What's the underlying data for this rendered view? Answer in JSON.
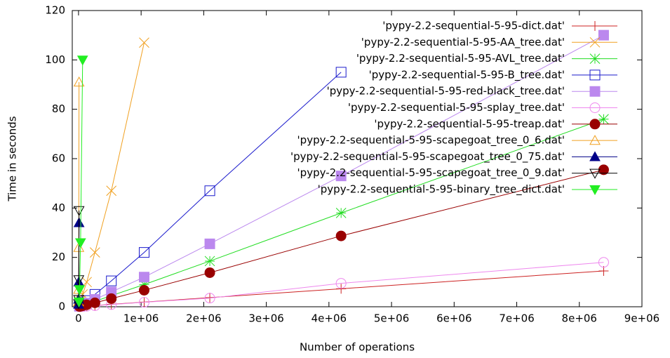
{
  "chart_data": {
    "type": "line",
    "xlabel": "Number of operations",
    "ylabel": "Time in seconds",
    "xlim": [
      -100000,
      9000000
    ],
    "ylim": [
      0,
      120
    ],
    "xticks": [
      0,
      {
        "value": 1000000,
        "label": "1e+06"
      },
      {
        "value": 2000000,
        "label": "2e+06"
      },
      {
        "value": 3000000,
        "label": "3e+06"
      },
      {
        "value": 4000000,
        "label": "4e+06"
      },
      {
        "value": 5000000,
        "label": "5e+06"
      },
      {
        "value": 6000000,
        "label": "6e+06"
      },
      {
        "value": 7000000,
        "label": "7e+06"
      },
      {
        "value": 8000000,
        "label": "8e+06"
      },
      {
        "value": 9000000,
        "label": "9e+06"
      }
    ],
    "yticks": [
      0,
      20,
      40,
      60,
      80,
      100,
      120
    ],
    "legend": "upper-right",
    "series": [
      {
        "name": "'pypy-2.2-sequential-5-95-dict.dat'",
        "color": "#cc2222",
        "marker": "plus",
        "x": [
          16384,
          32768,
          65536,
          131072,
          262144,
          524288,
          1048576,
          2097152,
          4194304,
          8388608
        ],
        "values": [
          0.03,
          0.06,
          0.12,
          0.23,
          0.5,
          1.0,
          1.9,
          3.7,
          7.3,
          14.5
        ]
      },
      {
        "name": "'pypy-2.2-sequential-5-95-AA_tree.dat'",
        "color": "#f0a020",
        "marker": "cross",
        "x": [
          16384,
          32768,
          65536,
          131072,
          262144,
          524288,
          1048576
        ],
        "values": [
          1.2,
          2.5,
          5,
          10,
          22,
          47,
          107
        ]
      },
      {
        "name": "'pypy-2.2-sequential-5-95-AVL_tree.dat'",
        "color": "#22dd22",
        "marker": "star",
        "x": [
          16384,
          32768,
          65536,
          131072,
          262144,
          524288,
          1048576,
          2097152,
          4194304,
          8388608
        ],
        "values": [
          0.14,
          0.28,
          0.55,
          1.1,
          2.2,
          4.5,
          9,
          18.5,
          38,
          76
        ]
      },
      {
        "name": "'pypy-2.2-sequential-5-95-B_tree.dat'",
        "color": "#1a1acc",
        "marker": "square-open",
        "x": [
          16384,
          32768,
          65536,
          131072,
          262144,
          524288,
          1048576,
          2097152,
          4194304
        ],
        "values": [
          0.3,
          0.6,
          1.2,
          2.5,
          5,
          10.5,
          22,
          47,
          95
        ]
      },
      {
        "name": "'pypy-2.2-sequential-5-95-red-black_tree.dat'",
        "color": "#bb88ee",
        "marker": "square-filled",
        "x": [
          16384,
          32768,
          65536,
          131072,
          262144,
          524288,
          1048576,
          2097152,
          4194304,
          8388608
        ],
        "values": [
          0.17,
          0.35,
          0.7,
          1.5,
          3,
          6,
          12,
          25.5,
          53,
          110
        ]
      },
      {
        "name": "'pypy-2.2-sequential-5-95-splay_tree.dat'",
        "color": "#ee88ee",
        "marker": "circle-open",
        "x": [
          16384,
          32768,
          65536,
          131072,
          262144,
          524288,
          1048576,
          2097152,
          4194304,
          8388608
        ],
        "values": [
          0.03,
          0.06,
          0.11,
          0.22,
          0.45,
          0.9,
          1.8,
          3.5,
          9.5,
          18
        ]
      },
      {
        "name": "'pypy-2.2-sequential-5-95-treap.dat'",
        "color": "#990000",
        "marker": "circle-filled",
        "x": [
          16384,
          32768,
          65536,
          131072,
          262144,
          524288,
          1048576,
          2097152,
          4194304,
          8388608
        ],
        "values": [
          0.1,
          0.2,
          0.4,
          0.8,
          1.6,
          3.3,
          6.7,
          13.8,
          28.7,
          55.5
        ]
      },
      {
        "name": "'pypy-2.2-sequential-5-95-scapegoat_tree_0_6.dat'",
        "color": "#f0a020",
        "marker": "tri-up-open",
        "x": [
          1024,
          2048,
          4096,
          8192
        ],
        "values": [
          2,
          7,
          24,
          91
        ]
      },
      {
        "name": "'pypy-2.2-sequential-5-95-scapegoat_tree_0_75.dat'",
        "color": "#000088",
        "marker": "tri-up-filled",
        "x": [
          1024,
          2048,
          4096,
          8192
        ],
        "values": [
          1,
          3,
          10,
          34
        ]
      },
      {
        "name": "'pypy-2.2-sequential-5-95-scapegoat_tree_0_9.dat'",
        "color": "#000000",
        "marker": "tri-down-open",
        "x": [
          1024,
          2048,
          4096,
          8192
        ],
        "values": [
          1.3,
          3,
          11,
          39
        ]
      },
      {
        "name": "'pypy-2.2-sequential-5-95-binary_tree_dict.dat'",
        "color": "#22ee22",
        "marker": "tri-down-filled",
        "x": [
          8192,
          16384,
          32768,
          65536
        ],
        "values": [
          2,
          7,
          26,
          100
        ]
      }
    ]
  }
}
